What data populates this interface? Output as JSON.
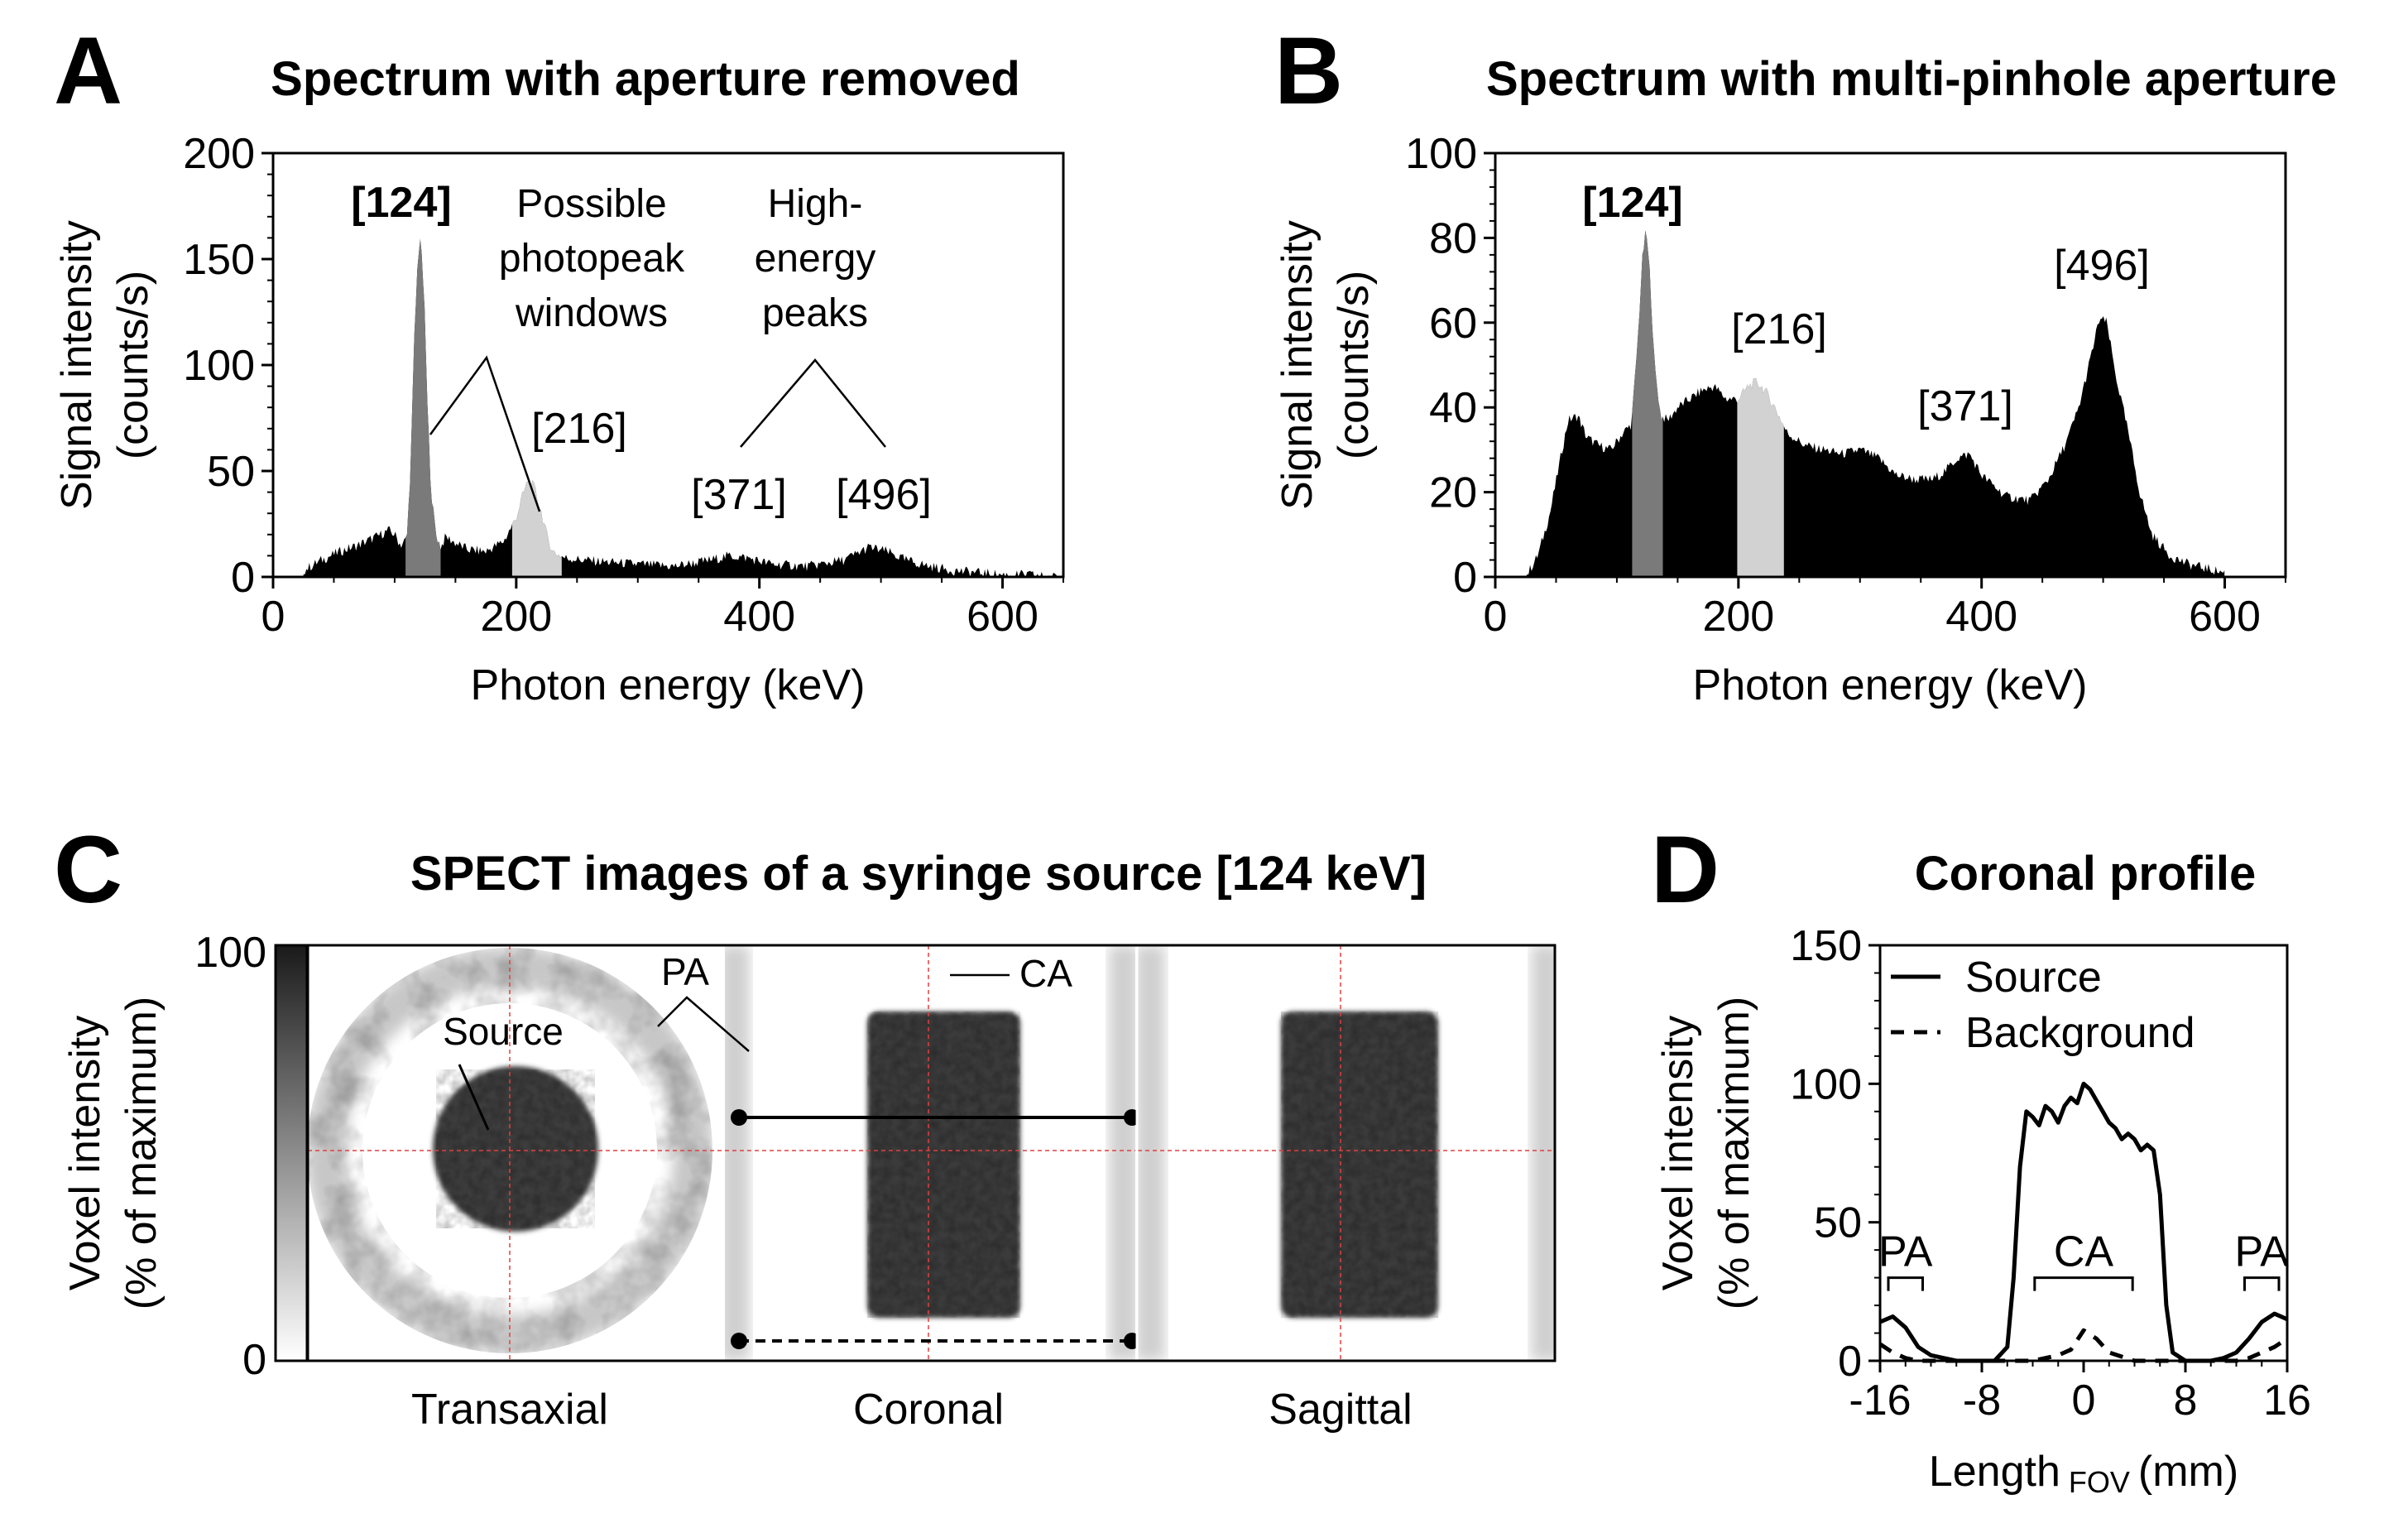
{
  "panels": {
    "a": {
      "letter": "A",
      "title": "Spectrum with aperture removed"
    },
    "b": {
      "letter": "B",
      "title": "Spectrum with multi-pinhole aperture"
    },
    "c": {
      "letter": "C",
      "title": "SPECT images of a syringe source [124 keV]"
    },
    "d": {
      "letter": "D",
      "title": "Coronal profile"
    }
  },
  "chart_data": [
    {
      "id": "A",
      "type": "area",
      "title": "Spectrum with aperture removed",
      "xlabel": "Photon energy (keV)",
      "ylabel_line1": "Signal intensity",
      "ylabel_line2": "(counts/s)",
      "xlim": [
        0,
        650
      ],
      "ylim": [
        0,
        200
      ],
      "xticks": [
        0,
        200,
        400,
        600
      ],
      "yticks": [
        0,
        50,
        100,
        150,
        200
      ],
      "xtick_labels": [
        "0",
        "200",
        "400",
        "600"
      ],
      "ytick_labels": [
        "0",
        "50",
        "100",
        "150",
        "200"
      ],
      "x": [
        25,
        40,
        55,
        70,
        85,
        95,
        100,
        105,
        110,
        113,
        116,
        119,
        121,
        123,
        125,
        127,
        130,
        134,
        138,
        142,
        150,
        160,
        175,
        190,
        200,
        205,
        210,
        215,
        220,
        225,
        230,
        240,
        255,
        275,
        300,
        330,
        360,
        375,
        390,
        410,
        440,
        470,
        490,
        505,
        520,
        540,
        560,
        580,
        600,
        620,
        640,
        650
      ],
      "y": [
        3,
        8,
        12,
        15,
        19,
        22,
        20,
        15,
        18,
        50,
        110,
        150,
        160,
        145,
        120,
        80,
        40,
        20,
        14,
        19,
        16,
        13,
        12,
        17,
        28,
        38,
        46,
        42,
        32,
        20,
        12,
        9,
        8,
        7,
        6,
        5,
        8,
        10,
        9,
        6,
        5,
        8,
        14,
        12,
        8,
        5,
        3,
        2,
        1,
        1,
        0,
        0
      ],
      "windows": [
        {
          "name": "124 keV window",
          "from": 108,
          "to": 138,
          "color": "#7a7a7a"
        },
        {
          "name": "216 keV window",
          "from": 196,
          "to": 238,
          "color": "#d2d2d2"
        }
      ],
      "annotations": {
        "peak_124": "[124]",
        "peak_216": "[216]",
        "peak_371": "[371]",
        "peak_496": "[496]",
        "windows_note_line1": "Possible",
        "windows_note_line2": "photopeak",
        "windows_note_line3": "windows",
        "high_note_line1": "High-",
        "high_note_line2": "energy",
        "high_note_line3": "peaks"
      }
    },
    {
      "id": "B",
      "type": "area",
      "title": "Spectrum with multi-pinhole aperture",
      "xlabel": "Photon energy (keV)",
      "ylabel_line1": "Signal intensity",
      "ylabel_line2": "(counts/s)",
      "xlim": [
        0,
        650
      ],
      "ylim": [
        0,
        100
      ],
      "xticks": [
        0,
        200,
        400,
        600
      ],
      "yticks": [
        0,
        20,
        40,
        60,
        80,
        100
      ],
      "xtick_labels": [
        "0",
        "200",
        "400",
        "600"
      ],
      "ytick_labels": [
        "0",
        "20",
        "40",
        "60",
        "80",
        "100"
      ],
      "x": [
        25,
        35,
        45,
        55,
        60,
        68,
        75,
        85,
        95,
        105,
        112,
        117,
        121,
        124,
        127,
        131,
        136,
        142,
        150,
        160,
        170,
        180,
        190,
        200,
        208,
        215,
        222,
        230,
        240,
        255,
        270,
        285,
        300,
        315,
        330,
        345,
        360,
        370,
        380,
        390,
        400,
        420,
        440,
        455,
        470,
        480,
        490,
        497,
        503,
        510,
        520,
        530,
        540,
        555,
        570,
        585,
        600
      ],
      "y": [
        0,
        5,
        15,
        30,
        37,
        38,
        33,
        31,
        30,
        34,
        36,
        55,
        75,
        82,
        72,
        50,
        38,
        37,
        40,
        42,
        44,
        45,
        42,
        42,
        45,
        46,
        44,
        40,
        34,
        31,
        30,
        29,
        30,
        28,
        24,
        23,
        23,
        25,
        28,
        29,
        24,
        19,
        18,
        23,
        32,
        40,
        52,
        61,
        60,
        48,
        35,
        20,
        10,
        5,
        3,
        2,
        1
      ],
      "windows": [
        {
          "name": "124 keV window",
          "from": 112,
          "to": 138,
          "color": "#7a7a7a"
        },
        {
          "name": "216 keV window",
          "from": 198,
          "to": 238,
          "color": "#d2d2d2"
        }
      ],
      "annotations": {
        "peak_124": "[124]",
        "peak_216": "[216]",
        "peak_371": "[371]",
        "peak_496": "[496]"
      }
    },
    {
      "id": "C",
      "type": "heatmap",
      "title": "SPECT images of a syringe source [124 keV]",
      "colorbar_label_line1": "Voxel intensity",
      "colorbar_label_line2": "(% of maximum)",
      "colorbar_range": [
        0,
        100
      ],
      "colorbar_tick_labels": [
        "0",
        "100"
      ],
      "views": [
        "Transaxial",
        "Coronal",
        "Sagittal"
      ],
      "annotations": {
        "source": "Source",
        "pa": "PA",
        "ca": "CA"
      }
    },
    {
      "id": "D",
      "type": "line",
      "title": "Coronal profile",
      "xlabel_main": "Length",
      "xlabel_sub": "FOV",
      "xlabel_unit": "(mm)",
      "ylabel_line1": "Voxel intensity",
      "ylabel_line2": "(% of maximum)",
      "xlim": [
        -16,
        16
      ],
      "ylim": [
        0,
        150
      ],
      "xticks": [
        -16,
        -8,
        0,
        8,
        16
      ],
      "yticks": [
        0,
        50,
        100,
        150
      ],
      "xtick_labels": [
        "-16",
        "-8",
        "0",
        "8",
        "16"
      ],
      "ytick_labels": [
        "0",
        "50",
        "100",
        "150"
      ],
      "series": [
        {
          "name": "Source",
          "style": "solid",
          "x": [
            -16,
            -15,
            -14,
            -13,
            -12,
            -11,
            -10,
            -9,
            -8,
            -7,
            -6,
            -5.5,
            -5,
            -4.5,
            -4,
            -3.5,
            -3,
            -2.5,
            -2,
            -1.5,
            -1,
            -0.5,
            0,
            0.5,
            1,
            1.5,
            2,
            2.5,
            3,
            3.5,
            4,
            4.5,
            5,
            5.5,
            6,
            6.5,
            7,
            8,
            9,
            10,
            11,
            12,
            13,
            14,
            15,
            16
          ],
          "y": [
            14,
            16,
            12,
            5,
            2,
            1,
            0,
            0,
            0,
            0,
            5,
            30,
            70,
            90,
            88,
            85,
            92,
            90,
            86,
            92,
            95,
            93,
            100,
            98,
            94,
            90,
            86,
            84,
            80,
            82,
            80,
            76,
            78,
            76,
            60,
            20,
            3,
            0,
            0,
            0,
            1,
            3,
            8,
            14,
            17,
            15
          ]
        },
        {
          "name": "Background",
          "style": "dashed",
          "x": [
            -16,
            -15,
            -14,
            -13,
            -12,
            -8,
            -4,
            -2,
            -1,
            0,
            1,
            2,
            4,
            8,
            12,
            13,
            14,
            15,
            16
          ],
          "y": [
            6,
            3,
            1,
            0,
            0,
            0,
            0,
            2,
            4,
            11,
            8,
            3,
            0,
            0,
            0,
            1,
            3,
            5,
            8
          ]
        }
      ],
      "brackets": [
        {
          "label": "PA",
          "from": -16,
          "to": -12,
          "level": 30
        },
        {
          "label": "CA",
          "from": -4.5,
          "to": 4.5,
          "level": 30
        },
        {
          "label": "PA",
          "from": 12,
          "to": 16,
          "level": 30
        }
      ],
      "legend": {
        "position": "top-left"
      }
    }
  ]
}
